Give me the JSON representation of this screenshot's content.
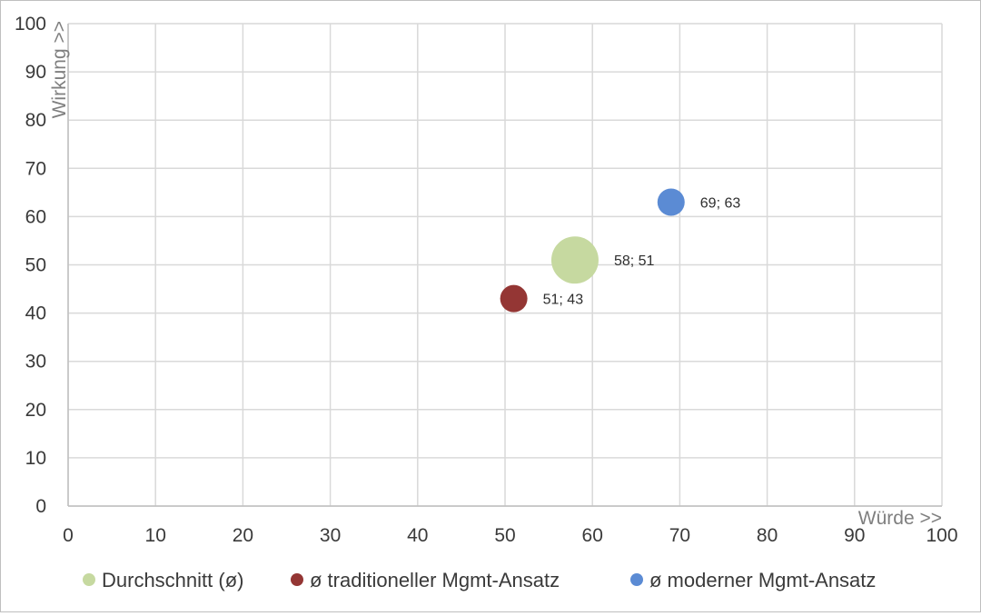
{
  "chart_data": {
    "type": "bubble",
    "title": "",
    "xlabel": "Würde >>",
    "ylabel": "Wirkung >>",
    "xlim": [
      0,
      100
    ],
    "ylim": [
      0,
      100
    ],
    "xticks": [
      "0",
      "10",
      "20",
      "30",
      "40",
      "50",
      "60",
      "70",
      "80",
      "90",
      "100"
    ],
    "yticks": [
      "0",
      "10",
      "20",
      "30",
      "40",
      "50",
      "60",
      "70",
      "80",
      "90",
      "100"
    ],
    "grid": true,
    "legend_position": "bottom",
    "series": [
      {
        "name": "Durchschnitt (ø)",
        "color": "#c6d9a0",
        "x": 58,
        "y": 51,
        "size": 3,
        "label": "58; 51"
      },
      {
        "name": "ø traditioneller Mgmt-Ansatz",
        "color": "#943634",
        "x": 51,
        "y": 43,
        "size": 1,
        "label": "51; 43"
      },
      {
        "name": "ø moderner Mgmt-Ansatz",
        "color": "#5b8bd4",
        "x": 69,
        "y": 63,
        "size": 1,
        "label": "69; 63"
      }
    ]
  }
}
